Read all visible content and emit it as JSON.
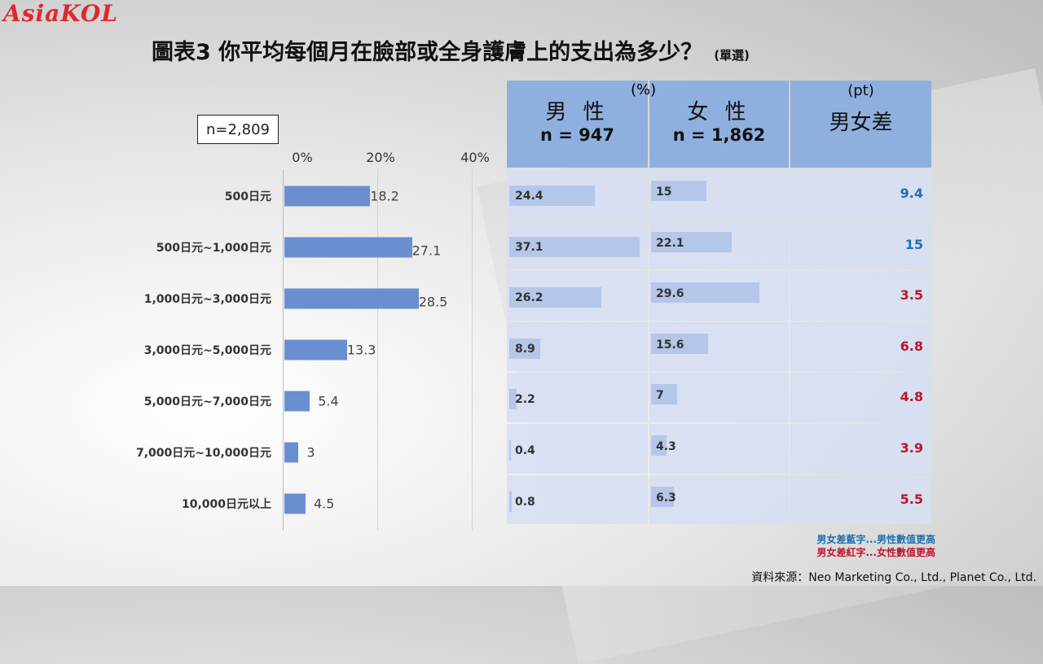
{
  "logo": "AsiaKOL",
  "title": "圖表3  你平均每個月在臉部或全身護膚上的支出為多少？",
  "title_sub": "(單選)",
  "sample_label": "n=2,809",
  "colors": {
    "bar": "#6a8fd0",
    "male_blue": "#1f6fb0",
    "female_red": "#c0142c",
    "header": "#8fb0de",
    "table_bar": "#b4c7e8"
  },
  "chart_data": {
    "type": "bar",
    "orientation": "horizontal",
    "categories": [
      "500日元",
      "500日元~1,000日元",
      "1,000日元~3,000日元",
      "3,000日元~5,000日元",
      "5,000日元~7,000日元",
      "7,000日元~10,000日元",
      "10,000日元以上"
    ],
    "values": [
      18.2,
      27.1,
      28.5,
      13.3,
      5.4,
      3,
      4.5
    ],
    "value_labels": [
      "18.2",
      "27.1",
      "28.5",
      "13.3",
      "5.4",
      "3",
      "4.5"
    ],
    "xticks": [
      "0%",
      "20%",
      "40%"
    ],
    "xlim": [
      0,
      40
    ]
  },
  "table": {
    "unit_pct": "(%)",
    "unit_pt": "(pt)",
    "male_header": "男 性",
    "male_n": "n = 947",
    "female_header": "女 性",
    "female_n": "n = 1,862",
    "diff_header": "男女差",
    "male_values": [
      24.4,
      37.1,
      26.2,
      8.9,
      2.2,
      0.4,
      0.8
    ],
    "female_values": [
      15,
      22.1,
      29.6,
      15.6,
      7,
      4.3,
      6.3
    ],
    "male_labels": [
      "24.4",
      "37.1",
      "26.2",
      "8.9",
      "2.2",
      "0.4",
      "0.8"
    ],
    "female_labels": [
      "15",
      "22.1",
      "29.6",
      "15.6",
      "7",
      "4.3",
      "6.3"
    ],
    "diff_labels": [
      "9.4",
      "15",
      "3.5",
      "6.8",
      "4.8",
      "3.9",
      "5.5"
    ],
    "diff_side": [
      "male",
      "male",
      "female",
      "female",
      "female",
      "female",
      "female"
    ]
  },
  "notes": {
    "blue_note": "男女差藍字...男性數值更高",
    "red_note": "男女差紅字...女性數值更高"
  },
  "source": "資料來源：Neo Marketing Co., Ltd., Planet Co., Ltd."
}
